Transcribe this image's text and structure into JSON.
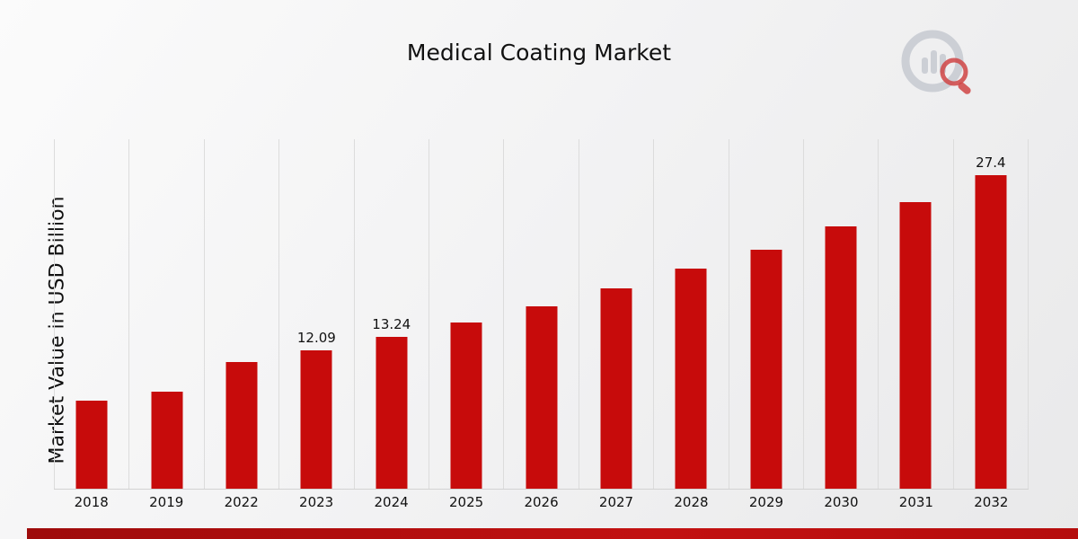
{
  "chart_data": {
    "type": "bar",
    "title": "Medical Coating Market",
    "xlabel": "",
    "ylabel": "Market Value in USD Billion",
    "categories": [
      "2018",
      "2019",
      "2022",
      "2023",
      "2024",
      "2025",
      "2026",
      "2027",
      "2028",
      "2029",
      "2030",
      "2031",
      "2032"
    ],
    "values": [
      7.7,
      8.5,
      11.05,
      12.09,
      13.24,
      14.5,
      15.9,
      17.5,
      19.2,
      20.9,
      22.9,
      25.0,
      27.4
    ],
    "data_labels": {
      "2023": "12.09",
      "2024": "13.24",
      "2032": "27.4"
    },
    "ylim": [
      0,
      30.6
    ],
    "bar_color": "#c70b0b",
    "grid": "vertical-only",
    "legend": "none"
  },
  "branding": {
    "logo_icon": "bar-chart-magnifier-logo",
    "accent_color": "#b30d0d"
  }
}
